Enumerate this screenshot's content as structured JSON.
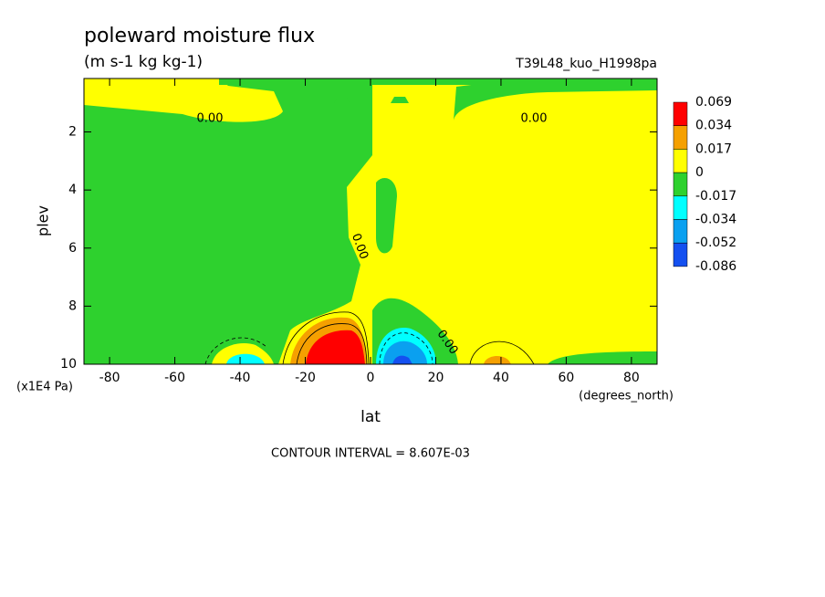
{
  "chart_data": {
    "type": "contour",
    "title": "poleward moisture flux",
    "subtitle": "(m s-1 kg kg-1)",
    "dataset": "T39L48_kuo_H1998pa",
    "xlabel": "lat",
    "xunit": "(degrees_north)",
    "ylabel": "plev",
    "yunit": "(x1E4 Pa)",
    "footnote": "CONTOUR INTERVAL = 8.607E-03",
    "xlim": [
      -87.86,
      87.86
    ],
    "xticks": [
      -80,
      -60,
      -40,
      -20,
      0,
      20,
      40,
      60,
      80
    ],
    "ylim": [
      10,
      0.16
    ],
    "yticks": [
      2,
      4,
      6,
      8,
      10
    ],
    "colorbar": {
      "levels": [
        0.069,
        0.034,
        0.017,
        0,
        -0.017,
        -0.034,
        -0.052,
        -0.086
      ],
      "colors": [
        "#ff0000",
        "#f5a000",
        "#ffff00",
        "#2ed12e",
        "#00ffff",
        "#0aa0f0",
        "#1450f0"
      ]
    },
    "contour_labels": [
      "0.00",
      "0.00",
      "0.00",
      "0.00"
    ]
  }
}
